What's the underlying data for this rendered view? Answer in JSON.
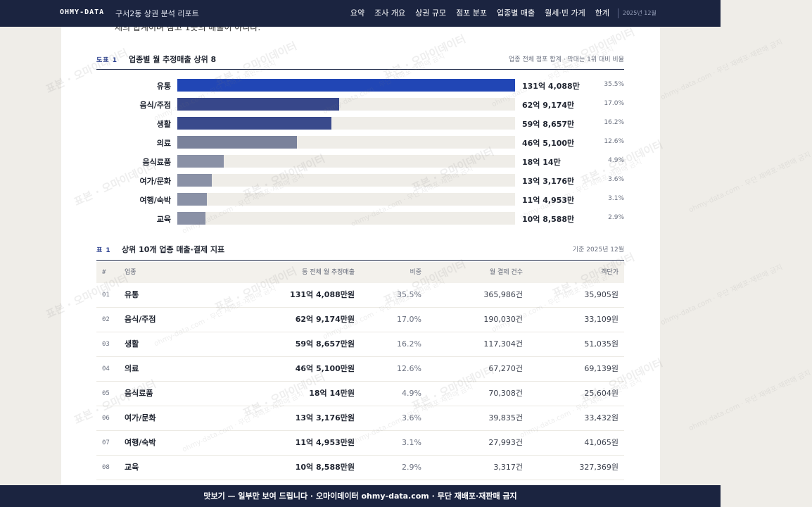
{
  "header": {
    "brand": "OHMY-DATA",
    "report_title": "구서2동 상권 분석 리포트",
    "nav": [
      "요약",
      "조사 개요",
      "상권 규모",
      "점포 분포",
      "업종별 매출",
      "월세·빈 가게",
      "한계"
    ],
    "period": "2025년 12월"
  },
  "cut_text": "제의 합계이며 참고 1곳의 매출이 아니다.",
  "figure": {
    "tag": "도표 1",
    "title": "업종별 월 추정매출 상위 8",
    "note": "업종 전체 점포 합계 · 막대는 1위 대비 비율"
  },
  "chart_data": {
    "type": "bar",
    "orientation": "horizontal",
    "title": "업종별 월 추정매출 상위 8",
    "categories": [
      "유통",
      "음식/주점",
      "생활",
      "의료",
      "음식료품",
      "여가/문화",
      "여행/숙박",
      "교육"
    ],
    "values_won": [
      13140880000,
      6291740000,
      5986570000,
      4651000000,
      1800140000,
      1331760000,
      1149530000,
      1085880000
    ],
    "value_labels": [
      "131억 4,088만",
      "62억 9,174만",
      "59억 8,657만",
      "46억 5,100만",
      "18억 14만",
      "13억 3,176만",
      "11억 4,953만",
      "10억 8,588만"
    ],
    "share_labels": [
      "35.5%",
      "17.0%",
      "16.2%",
      "12.6%",
      "4.9%",
      "3.6%",
      "3.1%",
      "2.9%"
    ],
    "colors": [
      "#2146b5",
      "#37478a",
      "#3a4a8c",
      "#7a829b",
      "#8a91a6",
      "#8a91a6",
      "#8a91a6",
      "#8a91a6"
    ]
  },
  "table": {
    "tag": "표 1",
    "title": "상위 10개 업종 매출·결제 지표",
    "note": "기준 2025년 12월",
    "headers": [
      "#",
      "업종",
      "동 전체 월 추정매출",
      "비중",
      "월 결제 건수",
      "객단가"
    ],
    "rows": [
      {
        "no": "01",
        "name": "유통",
        "sales": "131억 4,088만원",
        "share": "35.5%",
        "count": "365,986건",
        "avg": "35,905원"
      },
      {
        "no": "02",
        "name": "음식/주점",
        "sales": "62억 9,174만원",
        "share": "17.0%",
        "count": "190,030건",
        "avg": "33,109원"
      },
      {
        "no": "03",
        "name": "생활",
        "sales": "59억 8,657만원",
        "share": "16.2%",
        "count": "117,304건",
        "avg": "51,035원"
      },
      {
        "no": "04",
        "name": "의료",
        "sales": "46억 5,100만원",
        "share": "12.6%",
        "count": "67,270건",
        "avg": "69,139원"
      },
      {
        "no": "05",
        "name": "음식료품",
        "sales": "18억 14만원",
        "share": "4.9%",
        "count": "70,308건",
        "avg": "25,604원"
      },
      {
        "no": "06",
        "name": "여가/문화",
        "sales": "13억 3,176만원",
        "share": "3.6%",
        "count": "39,835건",
        "avg": "33,432원"
      },
      {
        "no": "07",
        "name": "여행/숙박",
        "sales": "11억 4,953만원",
        "share": "3.1%",
        "count": "27,993건",
        "avg": "41,065원"
      },
      {
        "no": "08",
        "name": "교육",
        "sales": "10억 8,588만원",
        "share": "2.9%",
        "count": "3,317건",
        "avg": "327,369원"
      }
    ]
  },
  "watermark": {
    "main": "표본 · 오마이데이터",
    "small": "ohmy-data.com · 무단 재배포·재판매 금지"
  },
  "footer": "맛보기 — 일부만 보여 드립니다 · 오마이데이터 ohmy-data.com · 무단 재배포·재판매 금지"
}
